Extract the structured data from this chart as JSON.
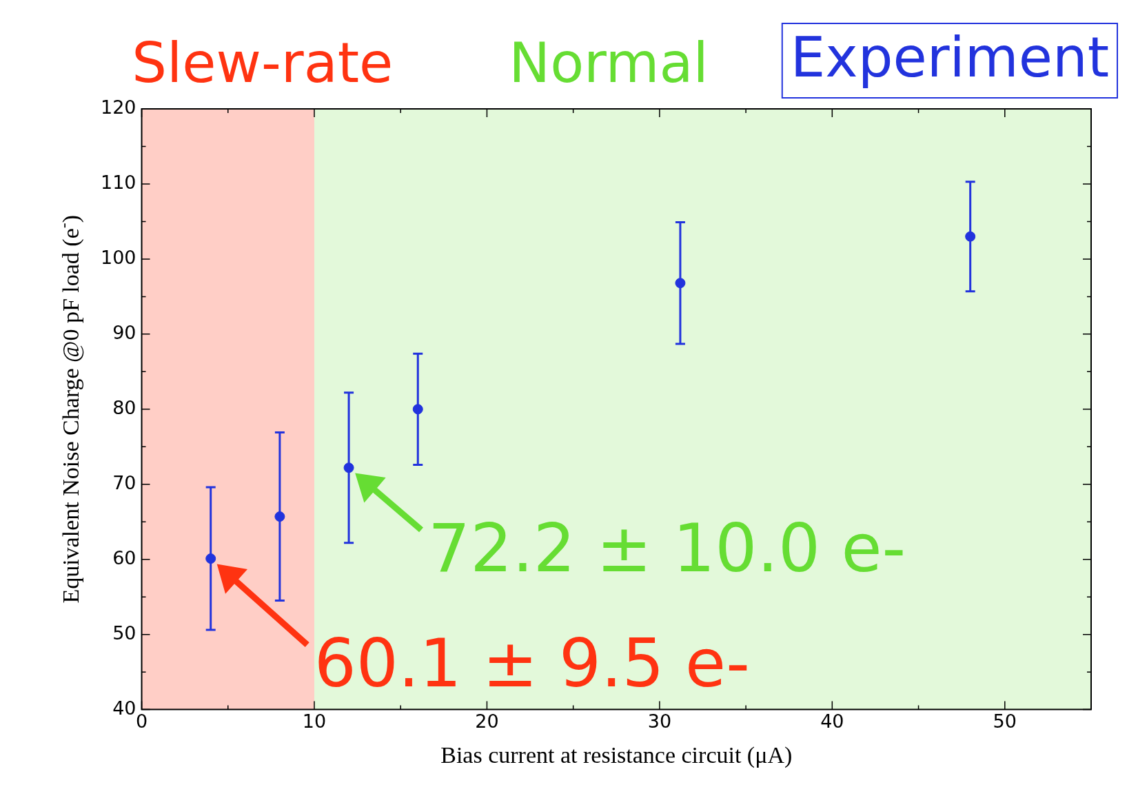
{
  "chart_data": {
    "type": "scatter",
    "xlabel": "Bias current at resistance circuit (μA)",
    "ylabel": "Equivalent Noise Charge @0 pF load (e$^{-}$)",
    "xlim": [
      0,
      55
    ],
    "xticks": [
      0,
      {
        "value": 5,
        "label": null
      },
      10,
      {
        "value": 15,
        "label": null
      },
      20,
      {
        "value": 25,
        "label": null
      },
      30,
      {
        "value": 35,
        "label": null
      },
      40,
      {
        "value": 45,
        "label": null
      },
      50
    ],
    "ylim": [
      40,
      120
    ],
    "yticks": [
      40,
      {
        "value": 45,
        "label": null
      },
      50,
      {
        "value": 55,
        "label": null
      },
      60,
      {
        "value": 65,
        "label": null
      },
      70,
      {
        "value": 75,
        "label": null
      },
      80,
      {
        "value": 85,
        "label": null
      },
      90,
      {
        "value": 95,
        "label": null
      },
      100,
      {
        "value": 105,
        "label": null
      },
      110,
      {
        "value": 115,
        "label": null
      },
      120
    ],
    "grid": false,
    "legend": "top right",
    "marker": "circle",
    "series": [
      {
        "name": "Experiment",
        "color": "#2233dd",
        "x": [
          4,
          8,
          12,
          16,
          31.2,
          48
        ],
        "values": [
          60.1,
          65.7,
          72.2,
          80.0,
          96.8,
          103.0
        ],
        "errors": [
          9.5,
          11.2,
          10.0,
          7.4,
          8.1,
          7.3
        ]
      }
    ],
    "bands": [
      {
        "axis": "x",
        "from": 0,
        "to": 10,
        "label": "Slew-rate",
        "color": "#ff3311"
      },
      {
        "axis": "x",
        "from": 10,
        "to": 55,
        "label": "Normal",
        "color": "#66dd33"
      }
    ],
    "annotations": [
      {
        "text": "72.2 ± 10.0 e-",
        "x": 12,
        "y": 72.2
      },
      {
        "text": "60.1 ± 9.5 e-",
        "x": 4,
        "y": 60.1
      }
    ]
  }
}
